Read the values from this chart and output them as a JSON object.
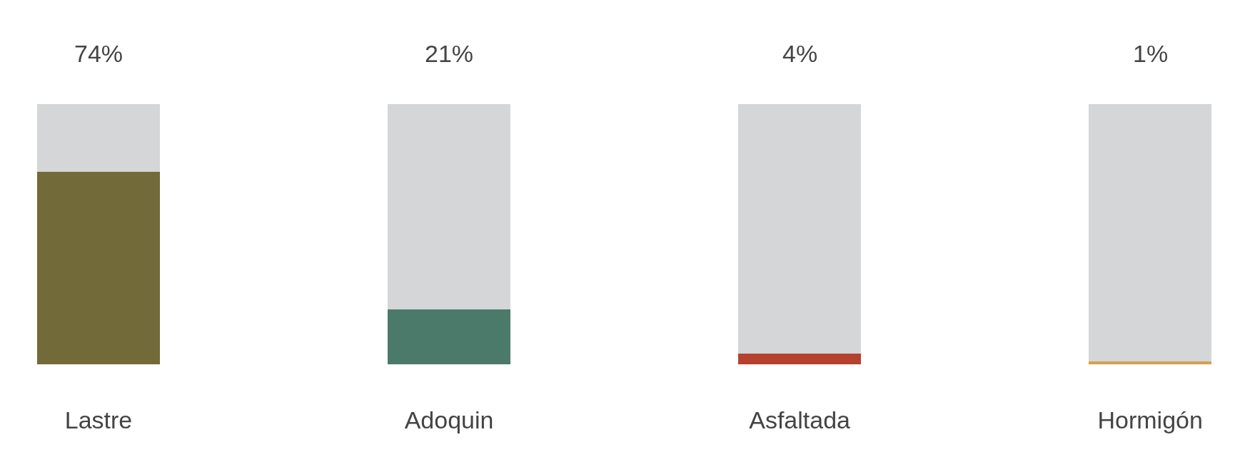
{
  "chart_data": {
    "type": "bar",
    "stacked": true,
    "categories": [
      "Lastre",
      "Adoquin",
      "Asfaltada",
      "Hormigón"
    ],
    "series": [
      {
        "colors": [
          "#736a3a",
          "#4b7a6b",
          "#b5412e",
          "#d4a050"
        ],
        "values": [
          74,
          21,
          4,
          1
        ],
        "value_labels": [
          "74%",
          "21%",
          "4%",
          "1%"
        ]
      },
      {
        "color": "#d5d6d8",
        "values": [
          26,
          79,
          96,
          99
        ]
      }
    ],
    "ylim": [
      0,
      100
    ],
    "tick_labels": "x"
  }
}
